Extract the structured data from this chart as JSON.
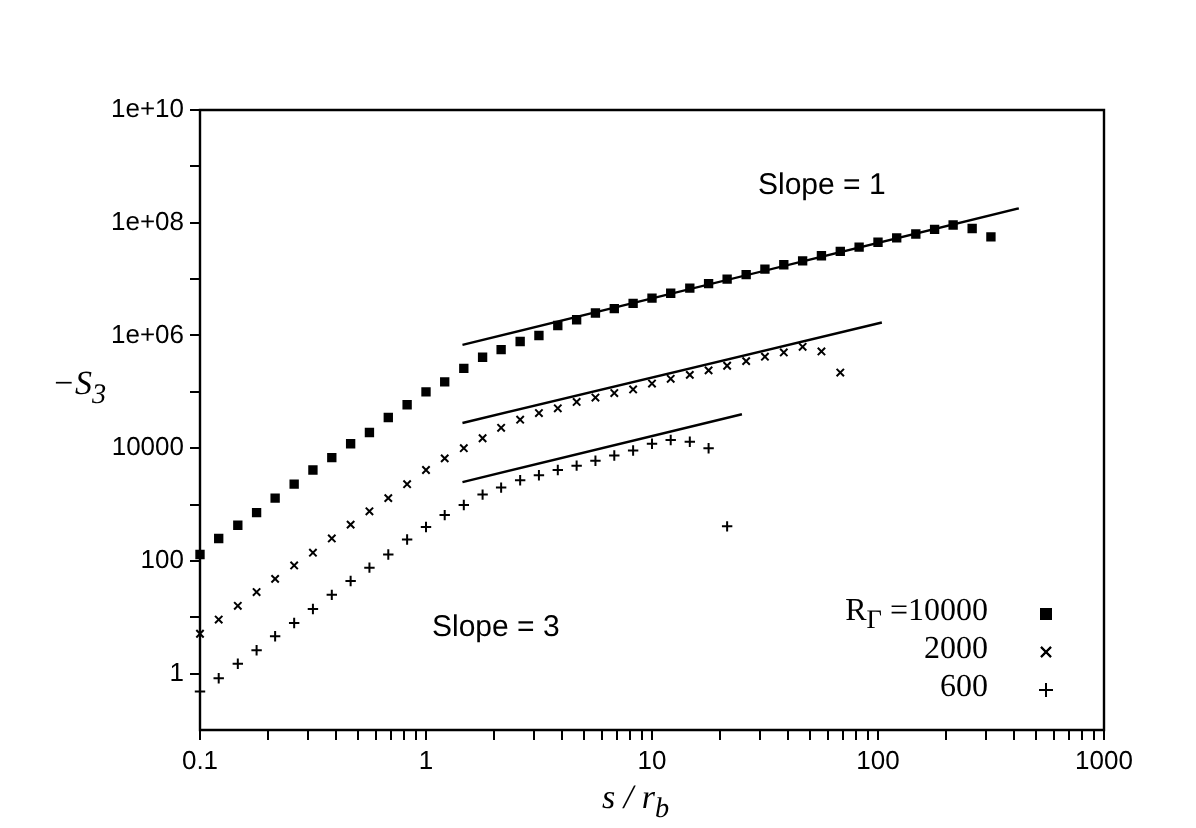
{
  "chart_data": {
    "type": "scatter",
    "xlabel": "s / r$_{b}$",
    "ylabel": "−S$_{3}$",
    "log": "xy",
    "grid": false,
    "legend": "bottom right",
    "xlim": [
      0.1,
      1000
    ],
    "ylim": [
      0.1,
      10000000000
    ],
    "xticks": [
      0.1,
      {
        "value": 0.2,
        "label": null
      },
      {
        "value": 0.3,
        "label": null
      },
      {
        "value": 0.4,
        "label": null
      },
      {
        "value": 0.5,
        "label": null
      },
      {
        "value": 0.6,
        "label": null
      },
      {
        "value": 0.7,
        "label": null
      },
      {
        "value": 0.8,
        "label": null
      },
      {
        "value": 0.9,
        "label": null
      },
      1,
      {
        "value": 2,
        "label": null
      },
      {
        "value": 3,
        "label": null
      },
      {
        "value": 4,
        "label": null
      },
      {
        "value": 5,
        "label": null
      },
      {
        "value": 6,
        "label": null
      },
      {
        "value": 7,
        "label": null
      },
      {
        "value": 8,
        "label": null
      },
      {
        "value": 9,
        "label": null
      },
      10,
      {
        "value": 20,
        "label": null
      },
      {
        "value": 30,
        "label": null
      },
      {
        "value": 40,
        "label": null
      },
      {
        "value": 50,
        "label": null
      },
      {
        "value": 60,
        "label": null
      },
      {
        "value": 70,
        "label": null
      },
      {
        "value": 80,
        "label": null
      },
      {
        "value": 90,
        "label": null
      },
      100,
      {
        "value": 200,
        "label": null
      },
      {
        "value": 300,
        "label": null
      },
      {
        "value": 400,
        "label": null
      },
      {
        "value": 500,
        "label": null
      },
      {
        "value": 600,
        "label": null
      },
      {
        "value": 700,
        "label": null
      },
      {
        "value": 800,
        "label": null
      },
      {
        "value": 900,
        "label": null
      },
      1000
    ],
    "yticks": [
      1,
      {
        "value": 10,
        "label": null
      },
      100,
      {
        "value": 1000,
        "label": null
      },
      10000,
      {
        "value": 100000,
        "label": null
      },
      {
        "value": 1000000,
        "label": "1e+06"
      },
      {
        "value": 10000000,
        "label": null
      },
      {
        "value": 100000000,
        "label": "1e+08"
      },
      {
        "value": 1000000000,
        "label": null
      },
      {
        "value": 10000000000,
        "label": "1e+10"
      }
    ],
    "annotations": [
      "Slope = 1",
      "Slope = 3"
    ],
    "series": [
      {
        "name": "R$_{Γ}$ =10000",
        "color": "#000000",
        "marker": "square",
        "x": [
          0.1,
          0.121,
          0.147,
          0.178,
          0.215,
          0.261,
          0.316,
          0.383,
          0.464,
          0.562,
          0.681,
          0.825,
          1,
          1.21,
          1.47,
          1.78,
          2.15,
          2.61,
          3.16,
          3.83,
          4.64,
          5.62,
          6.81,
          8.25,
          10,
          12.1,
          14.7,
          17.8,
          21.5,
          26.1,
          31.6,
          38.3,
          46.4,
          56.2,
          68.1,
          82.5,
          100,
          121,
          147,
          178,
          215,
          261,
          316
        ],
        "values": [
          130,
          250,
          430,
          720,
          1300,
          2300,
          4100,
          6800,
          12000,
          19000,
          35000,
          59000,
          100000,
          150000,
          260000,
          410000,
          560000,
          780000,
          1000000,
          1500000,
          1900000,
          2500000,
          3000000,
          3700000,
          4600000,
          5600000,
          6900000,
          8300000,
          10000000,
          12000000,
          15000000,
          18000000,
          21000000,
          26000000,
          31000000,
          37000000,
          45000000,
          54000000,
          63000000,
          76000000,
          91000000,
          79000000,
          56000000
        ]
      },
      {
        "name": "2000",
        "color": "#000000",
        "marker": "cross",
        "x": [
          0.1,
          0.121,
          0.147,
          0.178,
          0.215,
          0.261,
          0.316,
          0.383,
          0.464,
          0.562,
          0.681,
          0.825,
          1,
          1.21,
          1.47,
          1.78,
          2.15,
          2.61,
          3.16,
          3.83,
          4.64,
          5.62,
          6.81,
          8.25,
          10,
          12.1,
          14.7,
          17.8,
          21.5,
          26.1,
          31.6,
          38.3,
          46.4,
          56.2,
          68.1
        ],
        "values": [
          5.1,
          9.1,
          16,
          28,
          48,
          83,
          140,
          250,
          440,
          760,
          1300,
          2300,
          4100,
          6600,
          10000,
          15000,
          23000,
          32000,
          42000,
          51000,
          66000,
          79000,
          95000,
          110000,
          140000,
          170000,
          200000,
          240000,
          290000,
          350000,
          420000,
          500000,
          630000,
          520000,
          220000
        ]
      },
      {
        "name": "600",
        "color": "#000000",
        "marker": "plus",
        "x": [
          0.1,
          0.121,
          0.147,
          0.178,
          0.215,
          0.261,
          0.316,
          0.383,
          0.464,
          0.562,
          0.681,
          0.825,
          1,
          1.21,
          1.47,
          1.78,
          2.15,
          2.61,
          3.16,
          3.83,
          4.64,
          5.62,
          6.81,
          8.25,
          10,
          12.1,
          14.7,
          17.8,
          21.5
        ],
        "values": [
          0.48,
          0.83,
          1.5,
          2.6,
          4.6,
          7.9,
          14,
          25,
          44,
          76,
          130,
          240,
          400,
          650,
          980,
          1500,
          2000,
          2700,
          3300,
          4100,
          4900,
          6000,
          7400,
          9100,
          12000,
          14000,
          13000,
          10000,
          410
        ]
      },
      {
        "type": "line",
        "color": "#000000",
        "marker": "none",
        "line_style": "solid",
        "x": [
          1.45,
          420
        ],
        "values": [
          680000,
          180000000
        ]
      },
      {
        "type": "line",
        "color": "#000000",
        "marker": "none",
        "line_style": "solid",
        "x": [
          1.45,
          104
        ],
        "values": [
          28000,
          1700000
        ]
      },
      {
        "type": "line",
        "color": "#000000",
        "marker": "none",
        "line_style": "solid",
        "x": [
          1.45,
          25
        ],
        "values": [
          2500,
          40000
        ]
      }
    ]
  }
}
